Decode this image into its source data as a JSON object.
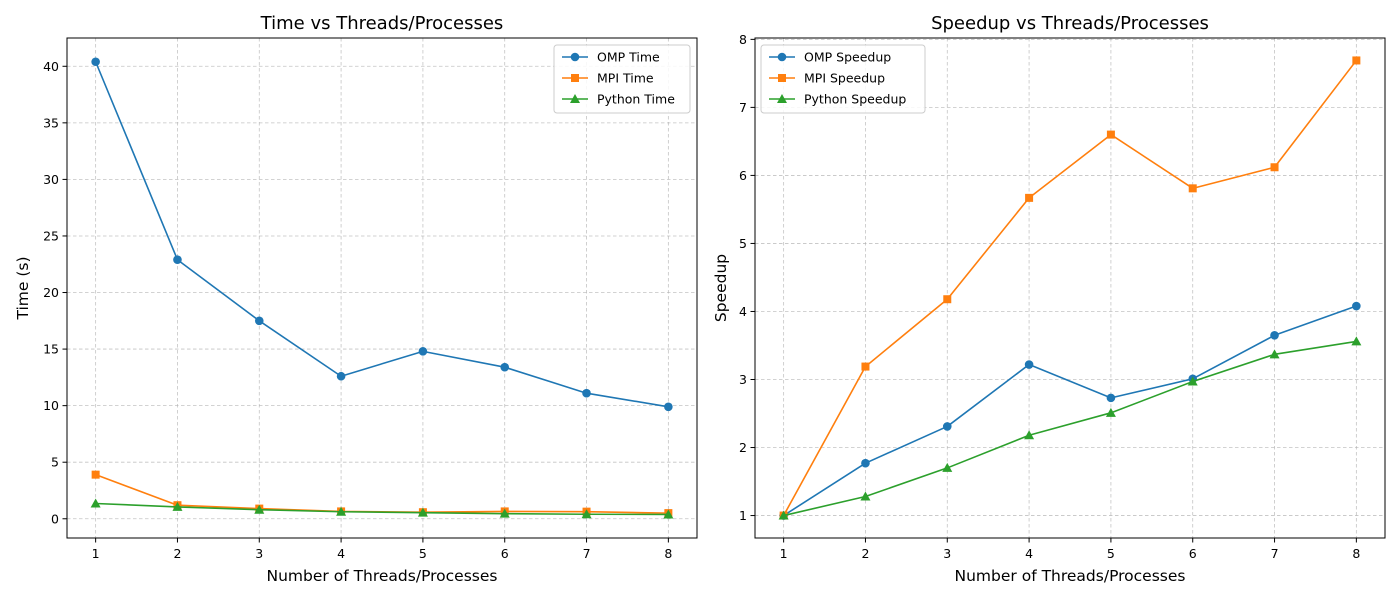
{
  "chart_data": [
    {
      "type": "line",
      "title": "Time vs Threads/Processes",
      "xlabel": "Number of Threads/Processes",
      "ylabel": "Time (s)",
      "x": [
        1,
        2,
        3,
        4,
        5,
        6,
        7,
        8
      ],
      "xlim": [
        0.65,
        8.35
      ],
      "ylim": [
        -1.7,
        42.5
      ],
      "xticks": [
        1,
        2,
        3,
        4,
        5,
        6,
        7,
        8
      ],
      "yticks": [
        0,
        5,
        10,
        15,
        20,
        25,
        30,
        35,
        40
      ],
      "grid": true,
      "legend_position": "top-right",
      "series": [
        {
          "name": "OMP Time",
          "color": "#1f77b4",
          "marker": "circle",
          "values": [
            40.4,
            22.9,
            17.5,
            12.6,
            14.8,
            13.4,
            11.1,
            9.9
          ]
        },
        {
          "name": "MPI Time",
          "color": "#ff7f0e",
          "marker": "square",
          "values": [
            3.9,
            1.2,
            0.9,
            0.65,
            0.58,
            0.65,
            0.63,
            0.5
          ]
        },
        {
          "name": "Python Time",
          "color": "#2ca02c",
          "marker": "triangle",
          "values": [
            1.35,
            1.05,
            0.8,
            0.62,
            0.54,
            0.45,
            0.4,
            0.38
          ]
        }
      ]
    },
    {
      "type": "line",
      "title": "Speedup vs Threads/Processes",
      "xlabel": "Number of Threads/Processes",
      "ylabel": "Speedup",
      "x": [
        1,
        2,
        3,
        4,
        5,
        6,
        7,
        8
      ],
      "xlim": [
        0.65,
        8.35
      ],
      "ylim": [
        0.67,
        8.02
      ],
      "xticks": [
        1,
        2,
        3,
        4,
        5,
        6,
        7,
        8
      ],
      "yticks": [
        1,
        2,
        3,
        4,
        5,
        6,
        7,
        8
      ],
      "grid": true,
      "legend_position": "top-left",
      "series": [
        {
          "name": "OMP Speedup",
          "color": "#1f77b4",
          "marker": "circle",
          "values": [
            1.0,
            1.77,
            2.31,
            3.22,
            2.73,
            3.01,
            3.65,
            4.08
          ]
        },
        {
          "name": "MPI Speedup",
          "color": "#ff7f0e",
          "marker": "square",
          "values": [
            1.0,
            3.19,
            4.18,
            5.67,
            6.6,
            5.81,
            6.12,
            7.69
          ]
        },
        {
          "name": "Python Speedup",
          "color": "#2ca02c",
          "marker": "triangle",
          "values": [
            1.0,
            1.28,
            1.7,
            2.18,
            2.51,
            2.97,
            3.37,
            3.56
          ]
        }
      ]
    }
  ]
}
